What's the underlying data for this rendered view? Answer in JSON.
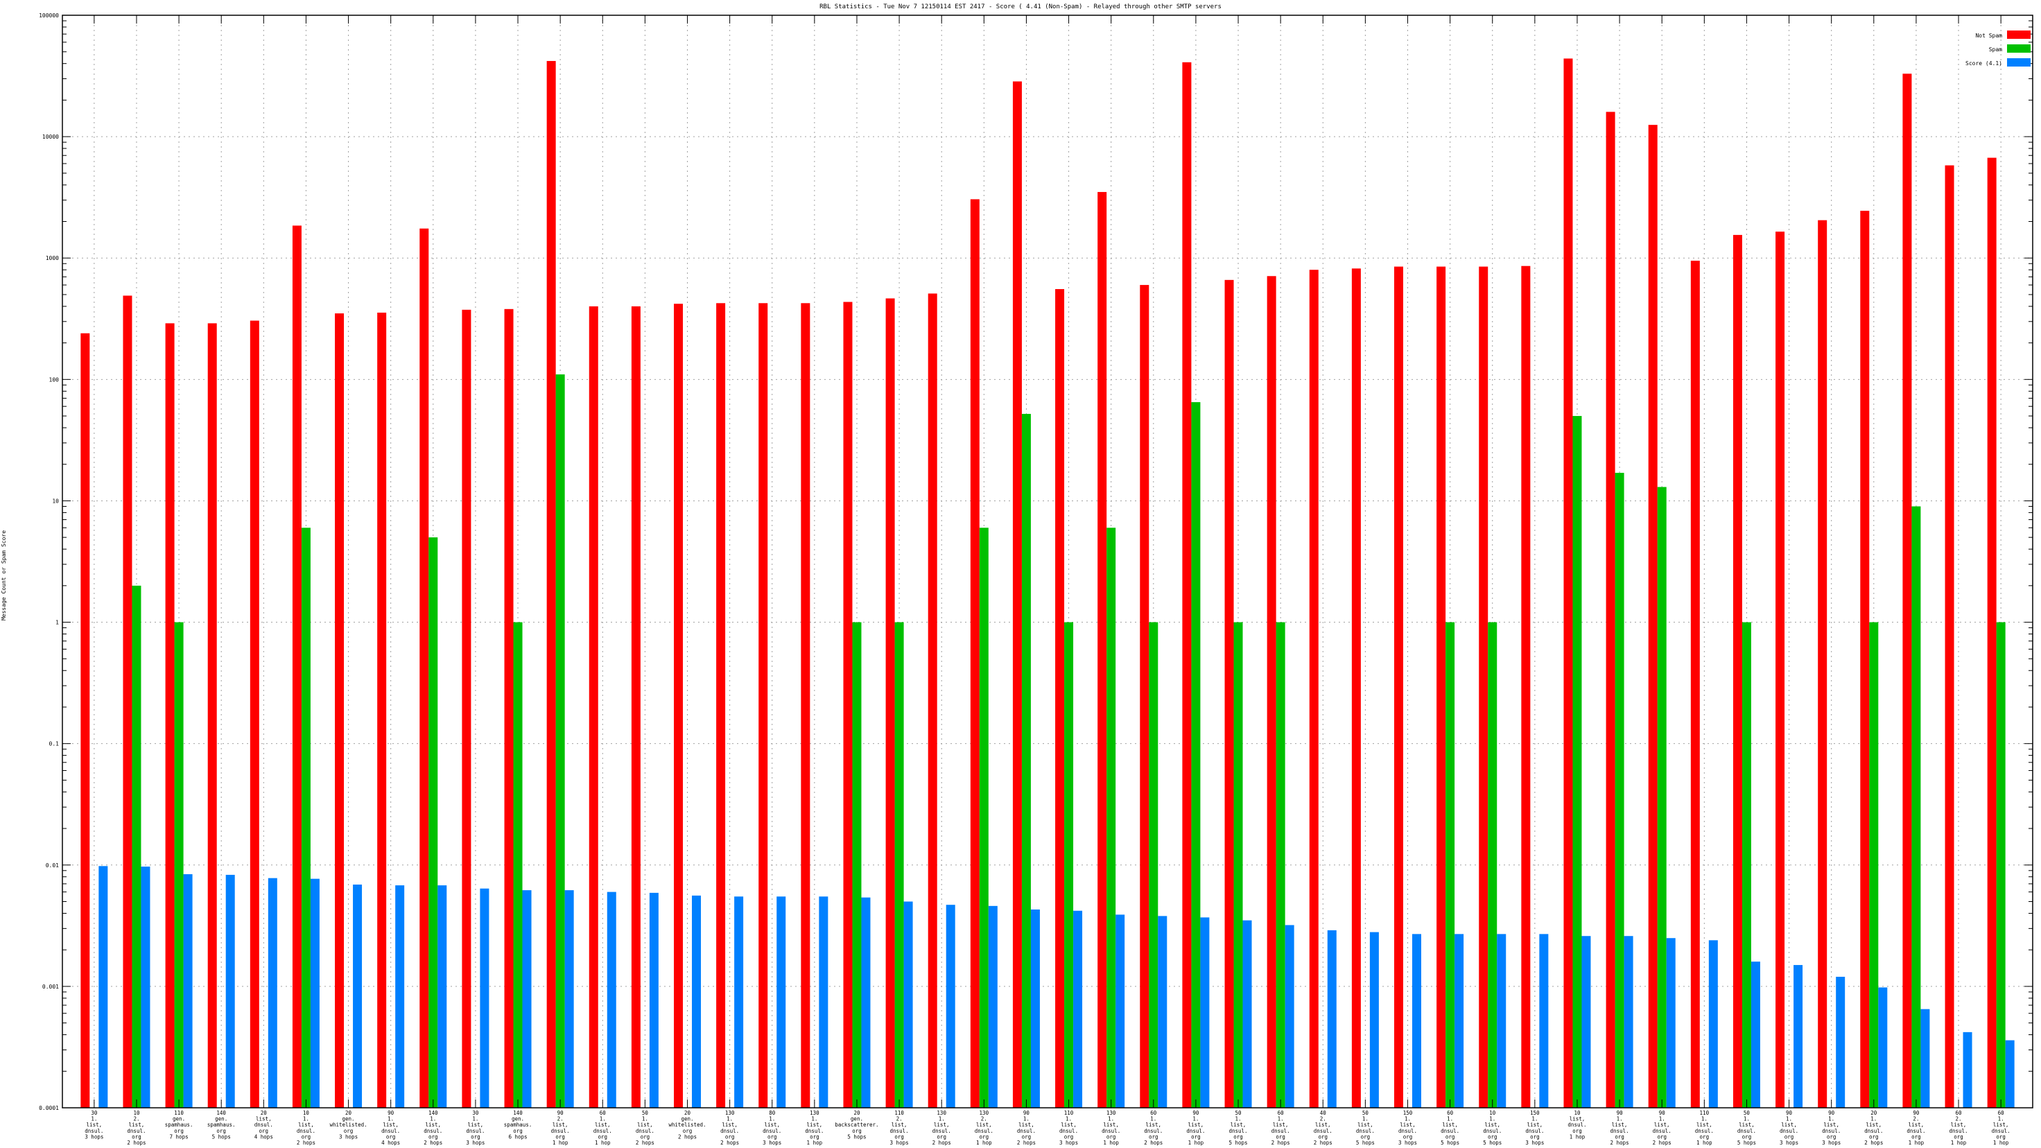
{
  "chart_data": {
    "type": "bar",
    "title": "RBL Statistics - Tue Nov  7 12150114 EST 2417 - Score ( 4.41 (Non-Spam) - Relayed through other SMTP servers",
    "ylabel": "Message Count or Spam Score",
    "xlabel": "",
    "yscale": "log",
    "ylim": [
      0.0001,
      100000
    ],
    "y_tick_labels": [
      "0.0001",
      "0.001",
      "0.01",
      "0.1",
      "1",
      "10",
      "100",
      "1000",
      "10000",
      "100000"
    ],
    "grid": true,
    "legend_position": "top-right",
    "categories": [
      [
        "30",
        "1.",
        "list,",
        "dnsul.",
        "3 hops"
      ],
      [
        "10",
        "2.",
        "list,",
        "dnsul.",
        "org",
        "2 hops"
      ],
      [
        "110",
        "gen.",
        "spamhaus.",
        "org",
        "7 hops"
      ],
      [
        "140",
        "gen.",
        "spamhaus.",
        "org",
        "5 hops"
      ],
      [
        "20",
        "list,",
        "dnsul.",
        "org",
        "4 hops"
      ],
      [
        "10",
        "1.",
        "list,",
        "dnsul.",
        "org",
        "2 hops"
      ],
      [
        "20",
        "gen.",
        "whitelisted.",
        "org",
        "3 hops"
      ],
      [
        "90",
        "1.",
        "list,",
        "dnsul.",
        "org",
        "4 hops"
      ],
      [
        "140",
        "1.",
        "list,",
        "dnsul.",
        "org",
        "2 hops"
      ],
      [
        "30",
        "1.",
        "list,",
        "dnsul.",
        "org",
        "3 hops"
      ],
      [
        "140",
        "gen.",
        "spamhaus.",
        "org",
        "6 hops"
      ],
      [
        "90",
        "2.",
        "list,",
        "dnsul.",
        "org",
        "1 hop"
      ],
      [
        "60",
        "1.",
        "list,",
        "dnsul.",
        "org",
        "1 hop"
      ],
      [
        "50",
        "1.",
        "list,",
        "dnsul.",
        "org",
        "2 hops"
      ],
      [
        "20",
        "gen.",
        "whitelisted.",
        "org",
        "2 hops"
      ],
      [
        "130",
        "1.",
        "list,",
        "dnsul.",
        "org",
        "2 hops"
      ],
      [
        "80",
        "1.",
        "list,",
        "dnsul.",
        "org",
        "3 hops"
      ],
      [
        "130",
        "1.",
        "list,",
        "dnsul.",
        "org",
        "1 hop"
      ],
      [
        "20",
        "gen.",
        "backscatterer.",
        "org",
        "5 hops"
      ],
      [
        "110",
        "2.",
        "list,",
        "dnsul.",
        "org",
        "3 hops"
      ],
      [
        "130",
        "1.",
        "list,",
        "dnsul.",
        "org",
        "2 hops"
      ],
      [
        "130",
        "2.",
        "list,",
        "dnsul.",
        "org",
        "1 hop"
      ],
      [
        "90",
        "1.",
        "list,",
        "dnsul.",
        "org",
        "2 hops"
      ],
      [
        "110",
        "1.",
        "list,",
        "dnsul.",
        "org",
        "3 hops"
      ],
      [
        "130",
        "1.",
        "list,",
        "dnsul.",
        "org",
        "1 hop"
      ],
      [
        "60",
        "1.",
        "list,",
        "dnsul.",
        "org",
        "2 hops"
      ],
      [
        "90",
        "1.",
        "list,",
        "dnsul.",
        "org",
        "1 hop"
      ],
      [
        "50",
        "1.",
        "list,",
        "dnsul.",
        "org",
        "5 hops"
      ],
      [
        "60",
        "1.",
        "list,",
        "dnsul.",
        "org",
        "2 hops"
      ],
      [
        "40",
        "2.",
        "list,",
        "dnsul.",
        "org",
        "2 hops"
      ],
      [
        "50",
        "1.",
        "list,",
        "dnsul.",
        "org",
        "5 hops"
      ],
      [
        "150",
        "1.",
        "list,",
        "dnsul.",
        "org",
        "3 hops"
      ],
      [
        "60",
        "1.",
        "list,",
        "dnsul.",
        "org",
        "5 hops"
      ],
      [
        "10",
        "1.",
        "list,",
        "dnsul.",
        "org",
        "5 hops"
      ],
      [
        "150",
        "1.",
        "list,",
        "dnsul.",
        "org",
        "3 hops"
      ],
      [
        "10",
        "list,",
        "dnsul.",
        "org",
        "1 hop"
      ],
      [
        "90",
        "1.",
        "list,",
        "dnsul.",
        "org",
        "2 hops"
      ],
      [
        "90",
        "1.",
        "list,",
        "dnsul.",
        "org",
        "2 hops"
      ],
      [
        "110",
        "1.",
        "list,",
        "dnsul.",
        "org",
        "1 hop"
      ],
      [
        "50",
        "1.",
        "list,",
        "dnsul.",
        "org",
        "5 hops"
      ],
      [
        "90",
        "1.",
        "list,",
        "dnsul.",
        "org",
        "3 hops"
      ],
      [
        "90",
        "1.",
        "list,",
        "dnsul.",
        "org",
        "3 hops"
      ],
      [
        "20",
        "1.",
        "list,",
        "dnsul.",
        "org",
        "2 hops"
      ],
      [
        "90",
        "2.",
        "list,",
        "dnsul.",
        "org",
        "1 hop"
      ],
      [
        "60",
        "2.",
        "list,",
        "dnsul.",
        "org",
        "1 hop"
      ],
      [
        "60",
        "1.",
        "list,",
        "dnsul.",
        "org",
        "1 hop"
      ]
    ],
    "series": [
      {
        "name": "Not Spam",
        "color": "#ff0000",
        "values": [
          240,
          490,
          290,
          290,
          305,
          1850,
          350,
          355,
          1750,
          375,
          380,
          42000,
          400,
          400,
          420,
          425,
          425,
          425,
          435,
          465,
          510,
          3050,
          28500,
          555,
          3500,
          600,
          41000,
          660,
          710,
          800,
          820,
          850,
          850,
          850,
          860,
          44000,
          16000,
          12500,
          950,
          1550,
          1650,
          2050,
          2450,
          33000,
          5800,
          6700
        ]
      },
      {
        "name": "Spam",
        "color": "#00c000",
        "values": [
          null,
          2,
          1,
          null,
          null,
          6,
          null,
          null,
          5,
          null,
          1,
          110,
          null,
          null,
          null,
          null,
          null,
          null,
          1,
          1,
          null,
          6,
          52,
          1,
          6,
          1,
          65,
          1,
          1,
          null,
          null,
          null,
          1,
          1,
          null,
          50,
          17,
          13,
          null,
          1,
          null,
          null,
          1,
          9,
          null,
          1
        ]
      },
      {
        "name": "Score (4.1)",
        "color": "#0080ff",
        "values": [
          0.0098,
          0.0097,
          0.0084,
          0.0083,
          0.0078,
          0.0077,
          0.0069,
          0.0068,
          0.0068,
          0.0064,
          0.0062,
          0.0062,
          0.006,
          0.0059,
          0.0056,
          0.0055,
          0.0055,
          0.0055,
          0.0054,
          0.005,
          0.0047,
          0.0046,
          0.0043,
          0.0042,
          0.0039,
          0.0038,
          0.0037,
          0.0035,
          0.0032,
          0.0029,
          0.0028,
          0.0027,
          0.0027,
          0.0027,
          0.0027,
          0.0026,
          0.0026,
          0.0025,
          0.0024,
          0.0016,
          0.0015,
          0.0012,
          0.00098,
          0.00065,
          0.00042,
          0.00036
        ]
      }
    ]
  }
}
